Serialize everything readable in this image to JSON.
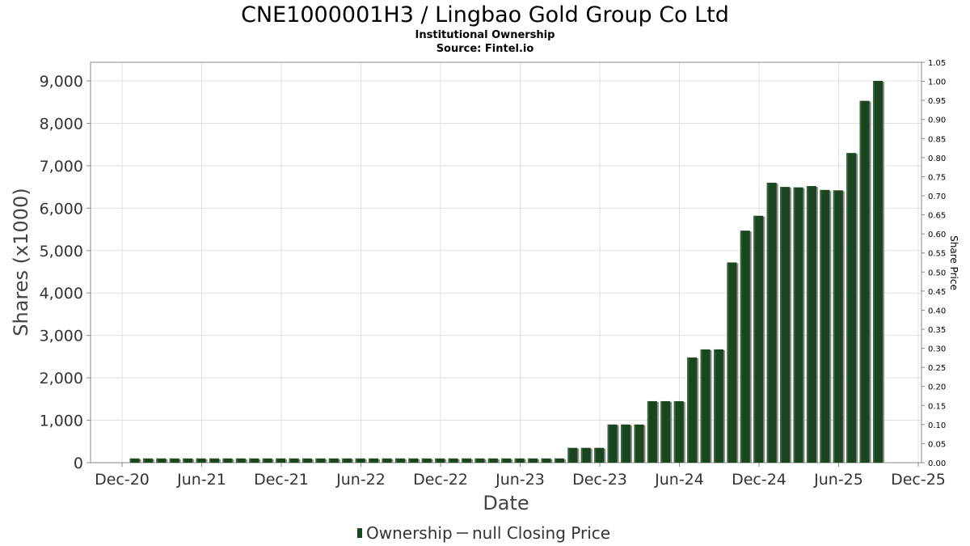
{
  "chart_data": {
    "type": "bar",
    "title": "CNE1000001H3 / Lingbao Gold Group Co Ltd",
    "subtitle": "Institutional Ownership",
    "source": "Source: Fintel.io",
    "xlabel": "Date",
    "ylabel": "Shares (x1000)",
    "ylabel_right": "Share Price",
    "ylim": [
      0,
      9000
    ],
    "ylim_right": [
      0,
      1.05
    ],
    "yticks": [
      "0",
      "1,000",
      "2,000",
      "3,000",
      "4,000",
      "5,000",
      "6,000",
      "7,000",
      "8,000",
      "9,000"
    ],
    "yticks_right": [
      "0.00",
      "0.05",
      "0.10",
      "0.15",
      "0.20",
      "0.25",
      "0.30",
      "0.35",
      "0.40",
      "0.45",
      "0.50",
      "0.55",
      "0.60",
      "0.65",
      "0.70",
      "0.75",
      "0.80",
      "0.85",
      "0.90",
      "0.95",
      "1.00",
      "1.05"
    ],
    "xticks": [
      "Dec-20",
      "Jun-21",
      "Dec-21",
      "Jun-22",
      "Dec-22",
      "Jun-23",
      "Dec-23",
      "Jun-24",
      "Dec-24",
      "Jun-25",
      "Dec-25"
    ],
    "grid": true,
    "legend_position": "bottom",
    "colors": {
      "bar": "#1a4520",
      "bar_shadow": "#8c8c8c",
      "grid": "#e0e0e0",
      "frame": "#888888"
    },
    "series": [
      {
        "name": "Ownership",
        "values": [
          100,
          100,
          100,
          100,
          100,
          100,
          100,
          100,
          100,
          100,
          100,
          100,
          100,
          100,
          100,
          100,
          100,
          100,
          100,
          100,
          100,
          100,
          100,
          100,
          100,
          100,
          100,
          100,
          100,
          100,
          100,
          100,
          100,
          350,
          350,
          350,
          900,
          900,
          900,
          1450,
          1450,
          1450,
          2480,
          2670,
          2670,
          4720,
          5470,
          5820,
          6600,
          6500,
          6490,
          6520,
          6430,
          6420,
          7300,
          8530,
          9000
        ]
      }
    ],
    "legend": [
      {
        "label": "Ownership",
        "marker": "bar"
      },
      {
        "label": "null Closing Price",
        "marker": "line"
      }
    ]
  }
}
